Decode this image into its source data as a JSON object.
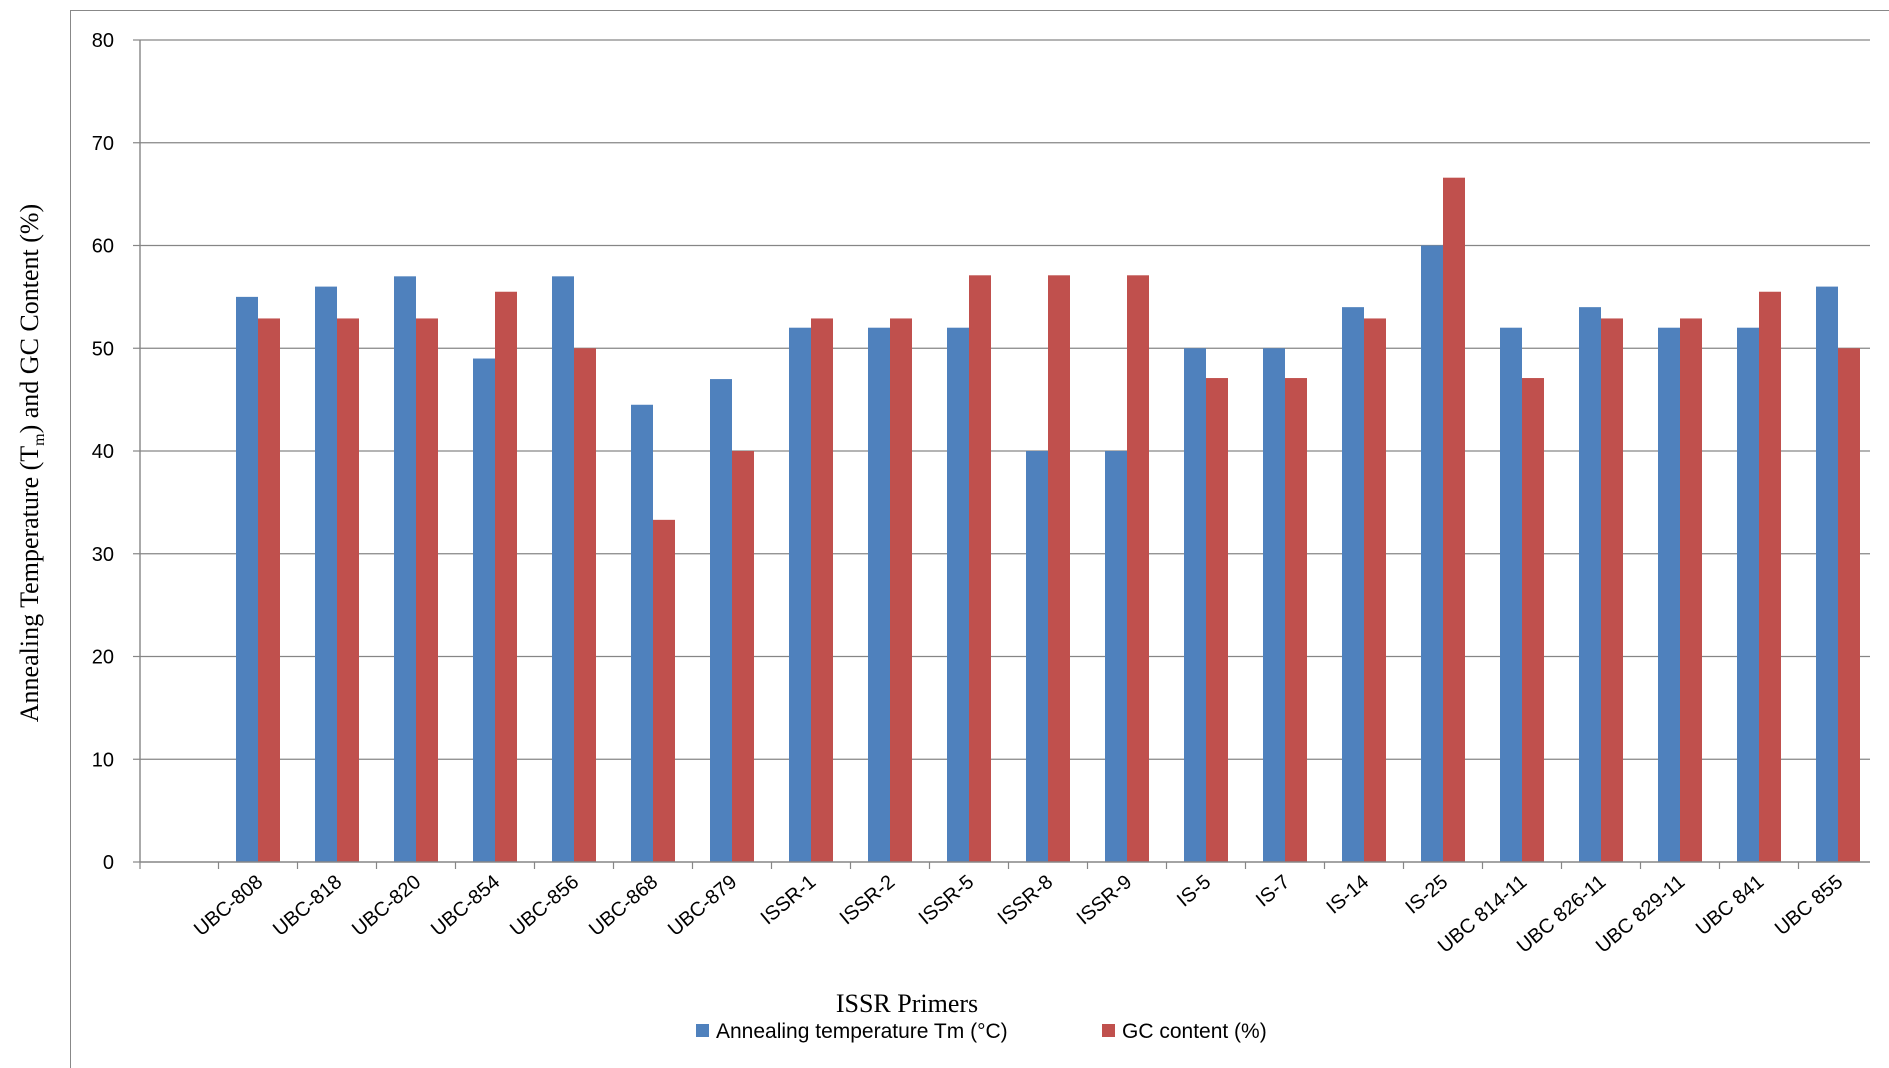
{
  "chart_data": {
    "type": "bar",
    "title": "",
    "xlabel": "ISSR Primers",
    "ylabel_parts": [
      "Annealing Temperature (T",
      "m",
      ") and GC Content (%)"
    ],
    "ylim": [
      0,
      80
    ],
    "yticks": [
      0,
      10,
      20,
      30,
      40,
      50,
      60,
      70,
      80
    ],
    "grid": true,
    "legend_position": "bottom",
    "categories": [
      "UBC-808",
      "UBC-818",
      "UBC-820",
      "UBC-854",
      "UBC-856",
      "UBC-868",
      "UBC-879",
      "ISSR-1",
      "ISSR-2",
      "ISSR-5",
      "ISSR-8",
      "ISSR-9",
      "IS-5",
      "IS-7",
      "IS-14",
      "IS-25",
      "UBC 814-11",
      "UBC 826-11",
      "UBC 829-11",
      "UBC 841",
      "UBC 855"
    ],
    "series": [
      {
        "name": "Annealing temperature Tm (°C)",
        "color": "#4f81bd",
        "values": [
          55,
          56,
          57,
          49,
          57,
          44.5,
          47,
          52,
          52,
          52,
          40,
          40,
          50,
          50,
          54,
          60,
          52,
          54,
          52,
          52,
          56
        ]
      },
      {
        "name": "GC content (%)",
        "color": "#c0504d",
        "values": [
          52.9,
          52.9,
          52.9,
          55.5,
          50,
          33.3,
          40,
          52.9,
          52.9,
          57.1,
          57.1,
          57.1,
          47.1,
          47.1,
          52.9,
          66.6,
          47.1,
          52.9,
          52.9,
          55.5,
          50
        ]
      }
    ]
  }
}
